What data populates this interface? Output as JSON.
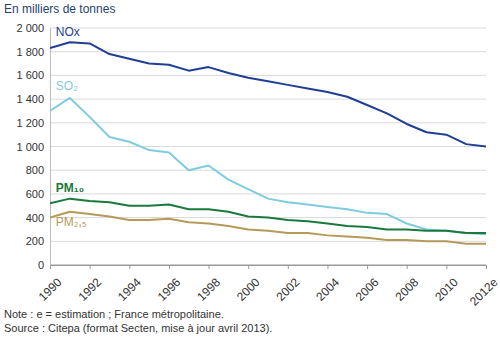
{
  "chart_data": {
    "type": "line",
    "y_label": "En milliers de tonnes",
    "notes": [
      "Note : e = estimation ; France métropolitaine.",
      "Source : Citepa (format Secten, mise à jour avril 2013)."
    ],
    "x": [
      1990,
      1991,
      1992,
      1993,
      1994,
      1995,
      1996,
      1997,
      1998,
      1999,
      2000,
      2001,
      2002,
      2003,
      2004,
      2005,
      2006,
      2007,
      2008,
      2009,
      2010,
      2011,
      2012
    ],
    "xlim": [
      1990,
      2012
    ],
    "xticks": [
      1990,
      1992,
      1994,
      1996,
      1998,
      2000,
      2002,
      2004,
      2006,
      2008,
      2010,
      {
        "value": 2012,
        "label": "2012e"
      }
    ],
    "ylim": [
      0,
      2000
    ],
    "yticks": [
      0,
      200,
      400,
      600,
      800,
      {
        "value": 1000,
        "label": "1 000"
      },
      {
        "value": 1200,
        "label": "1 200"
      },
      {
        "value": 1400,
        "label": "1 400"
      },
      {
        "value": 1600,
        "label": "1 600"
      },
      {
        "value": 1800,
        "label": "1 800"
      },
      {
        "value": 2000,
        "label": "2 000"
      }
    ],
    "grid": true,
    "series": [
      {
        "name": "NOx",
        "color": "#1f3f95",
        "values": [
          1830,
          1880,
          1870,
          1780,
          1740,
          1700,
          1690,
          1640,
          1670,
          1620,
          1580,
          1550,
          1520,
          1490,
          1460,
          1420,
          1350,
          1280,
          1190,
          1120,
          1100,
          1020,
          1000
        ]
      },
      {
        "name": "SO₂",
        "color": "#7fcbe0",
        "values": [
          1300,
          1410,
          1250,
          1080,
          1040,
          970,
          950,
          800,
          840,
          720,
          640,
          560,
          530,
          510,
          490,
          470,
          440,
          430,
          350,
          300,
          290,
          270,
          260
        ]
      },
      {
        "name": "PM₁₀",
        "color": "#1a7a3c",
        "values": [
          520,
          560,
          540,
          530,
          500,
          500,
          510,
          470,
          470,
          450,
          410,
          400,
          380,
          370,
          350,
          330,
          320,
          300,
          300,
          290,
          290,
          270,
          270
        ]
      },
      {
        "name": "PM₂,₅",
        "color": "#b59a5a",
        "values": [
          400,
          450,
          430,
          410,
          380,
          380,
          390,
          360,
          350,
          330,
          300,
          290,
          270,
          270,
          250,
          240,
          230,
          210,
          210,
          200,
          200,
          180,
          180
        ]
      }
    ]
  }
}
